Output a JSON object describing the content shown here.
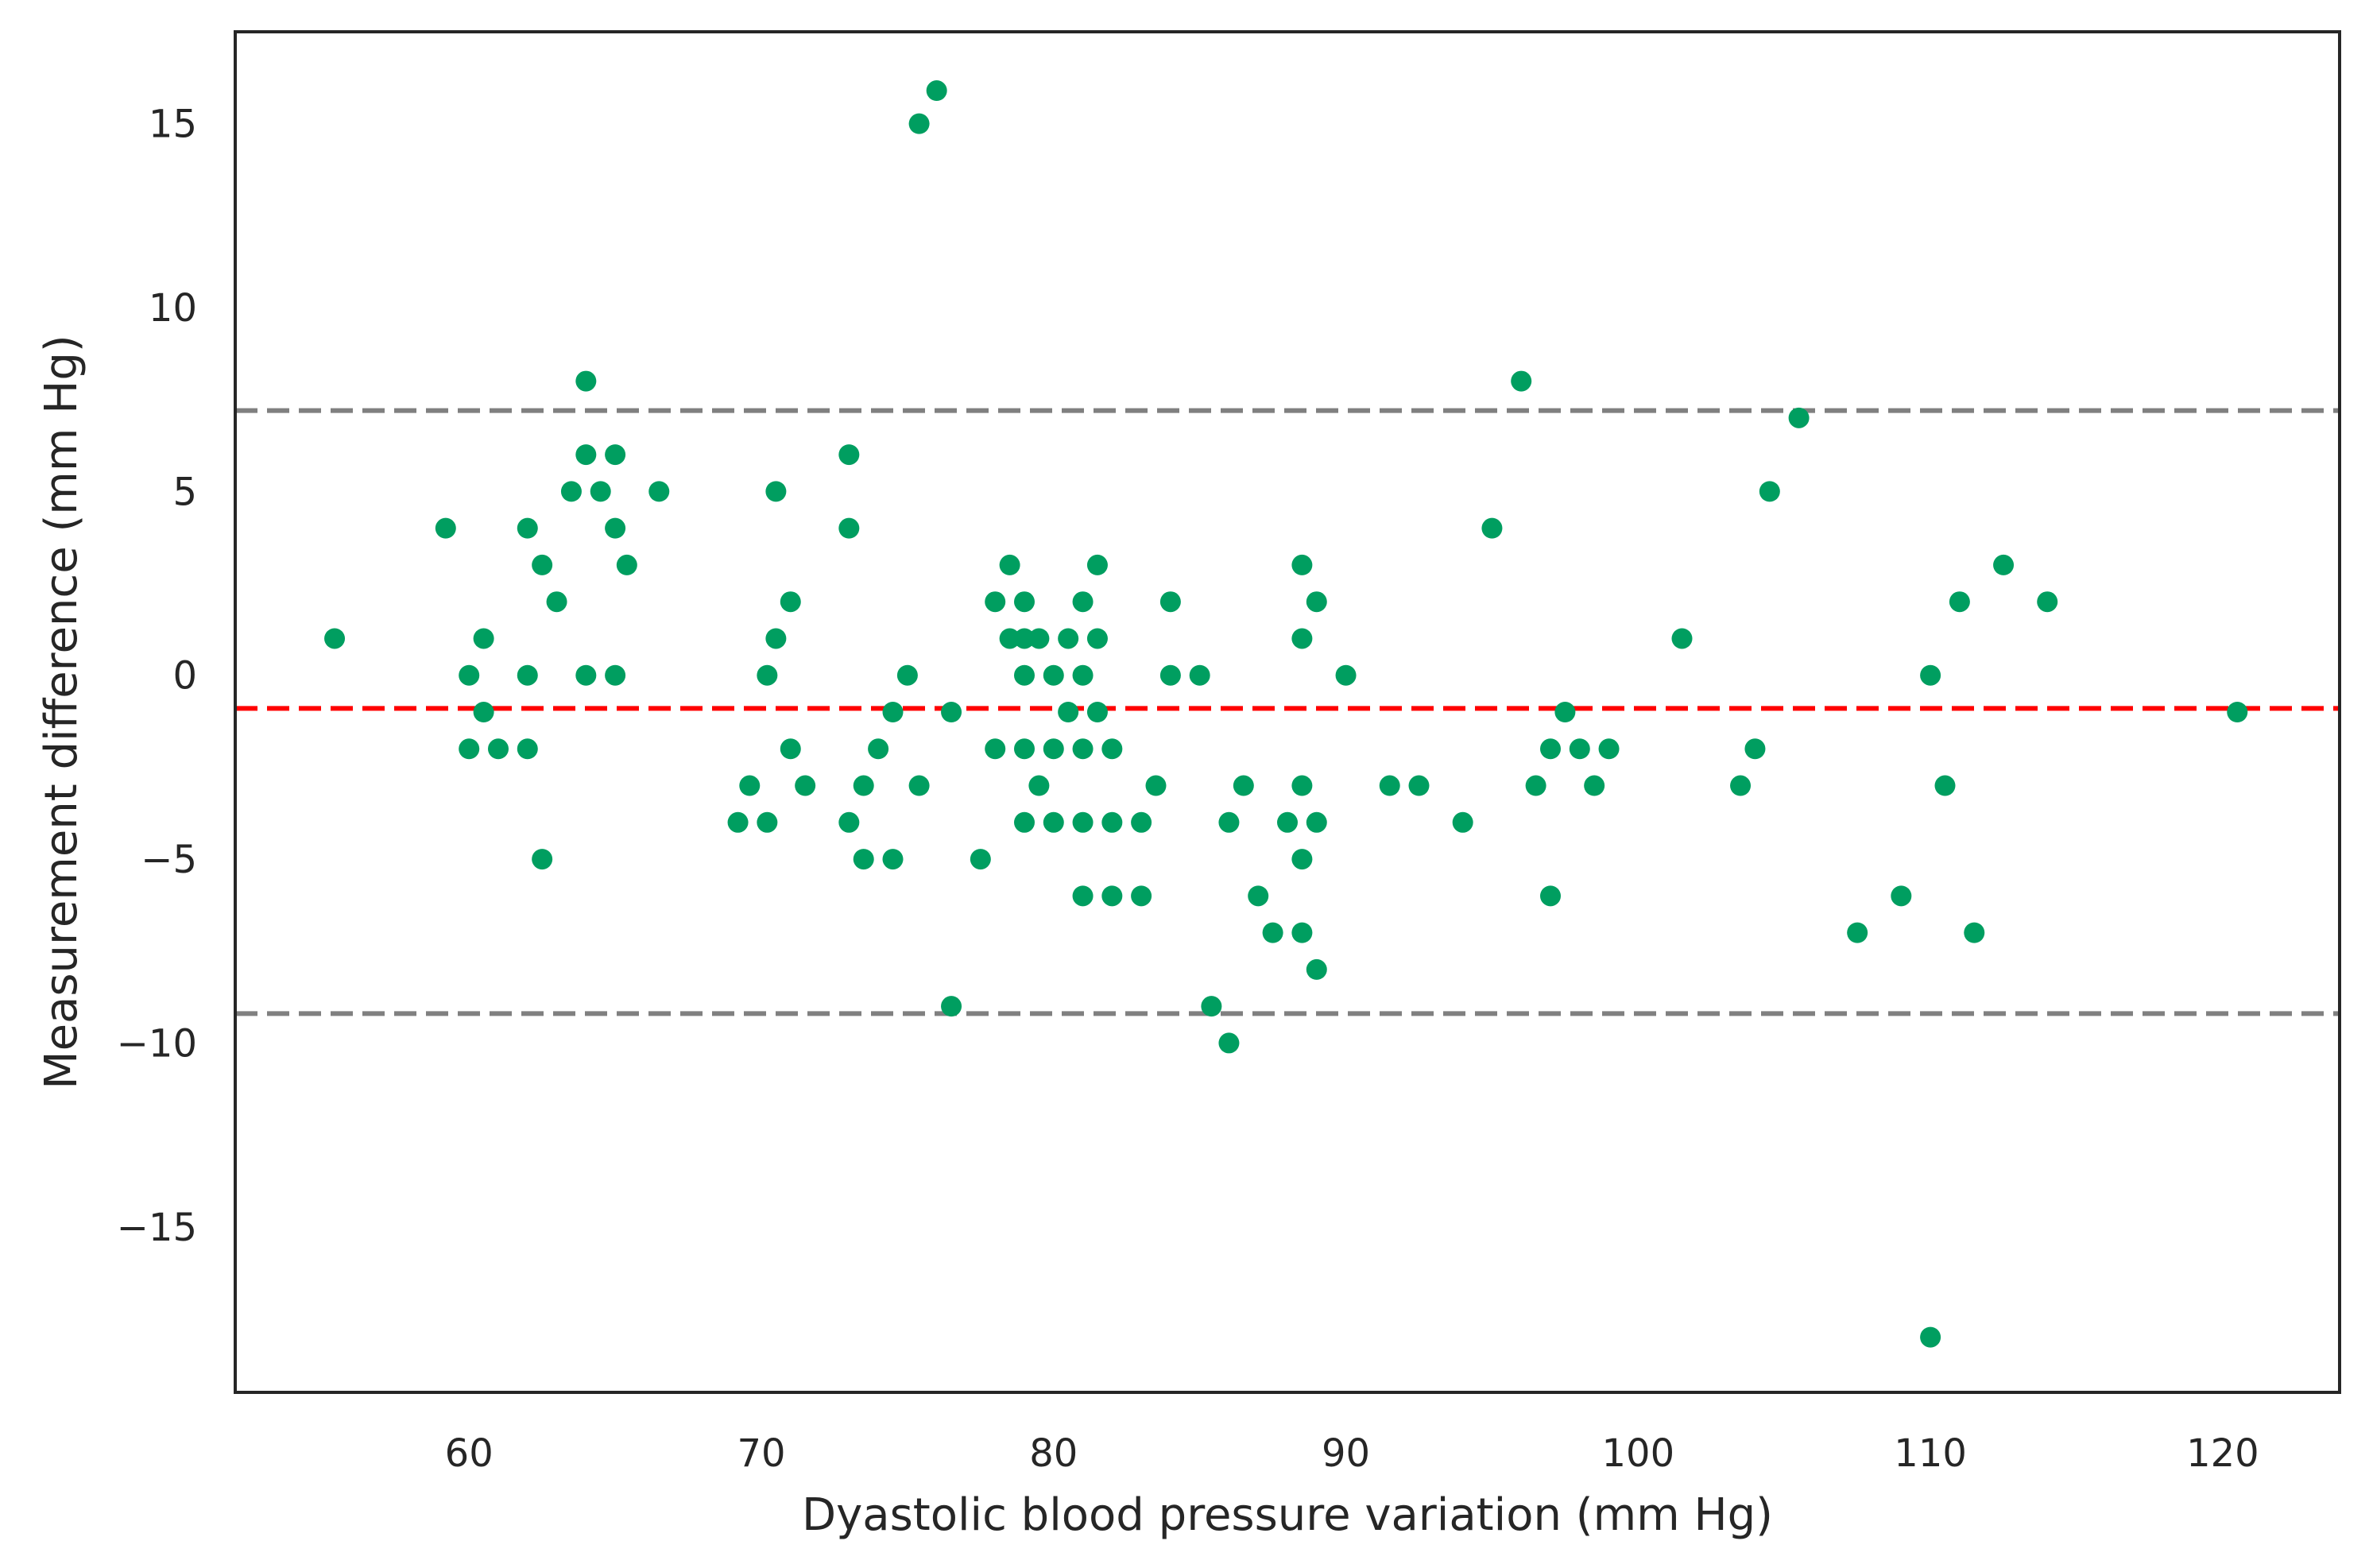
{
  "chart_data": {
    "type": "scatter",
    "title": "",
    "xlabel": "Dyastolic blood pressure variation (mm Hg)",
    "ylabel": "Measurement difference (mm Hg)",
    "xlim": [
      52,
      124
    ],
    "ylim": [
      -19.5,
      17.5
    ],
    "x_ticks": [
      60,
      70,
      80,
      90,
      100,
      110,
      120
    ],
    "x_tick_labels": [
      "60",
      "70",
      "80",
      "90",
      "100",
      "110",
      "120"
    ],
    "y_ticks": [
      15,
      10,
      5,
      0,
      -5,
      -10,
      -15
    ],
    "y_tick_labels": [
      "15",
      "10",
      "5",
      "0",
      "−5",
      "−10",
      "−15"
    ],
    "grid": false,
    "point_color": "#009e60",
    "reference_lines": [
      {
        "name": "upper-limit-of-agreement",
        "y": 7.2,
        "color": "#808080",
        "style": "dashed"
      },
      {
        "name": "mean-difference",
        "y": -0.9,
        "color": "#ff0000",
        "style": "dashed"
      },
      {
        "name": "lower-limit-of-agreement",
        "y": -9.2,
        "color": "#808080",
        "style": "dashed"
      }
    ],
    "series": [
      {
        "name": "measurements",
        "points": [
          [
            55.4,
            1
          ],
          [
            59.2,
            4
          ],
          [
            60,
            0
          ],
          [
            60,
            -2
          ],
          [
            60.5,
            1
          ],
          [
            60.5,
            -1
          ],
          [
            61,
            -2
          ],
          [
            62,
            4
          ],
          [
            62,
            0
          ],
          [
            62,
            -2
          ],
          [
            62.5,
            3
          ],
          [
            62.5,
            -5
          ],
          [
            63,
            2
          ],
          [
            63.5,
            5
          ],
          [
            64,
            8
          ],
          [
            64,
            6
          ],
          [
            64,
            0
          ],
          [
            64.5,
            5
          ],
          [
            65,
            6
          ],
          [
            65,
            4
          ],
          [
            65,
            0
          ],
          [
            65.4,
            3
          ],
          [
            66.5,
            5
          ],
          [
            69.2,
            -4
          ],
          [
            69.6,
            -3
          ],
          [
            70.2,
            0
          ],
          [
            70.2,
            -4
          ],
          [
            70.5,
            5
          ],
          [
            70.5,
            1
          ],
          [
            71,
            2
          ],
          [
            71,
            -2
          ],
          [
            71.5,
            -3
          ],
          [
            73,
            6
          ],
          [
            73,
            4
          ],
          [
            73,
            -4
          ],
          [
            73.5,
            -3
          ],
          [
            73.5,
            -5
          ],
          [
            74,
            -2
          ],
          [
            74.5,
            -1
          ],
          [
            74.5,
            -5
          ],
          [
            75,
            0
          ],
          [
            75.4,
            -3
          ],
          [
            75.4,
            15
          ],
          [
            76,
            15.9
          ],
          [
            76.5,
            -1
          ],
          [
            76.5,
            -9
          ],
          [
            77.5,
            -5
          ],
          [
            78,
            2
          ],
          [
            78,
            -2
          ],
          [
            78.5,
            3
          ],
          [
            78.5,
            1
          ],
          [
            79,
            2
          ],
          [
            79,
            1
          ],
          [
            79,
            0
          ],
          [
            79,
            -2
          ],
          [
            79,
            -4
          ],
          [
            79.5,
            1
          ],
          [
            79.5,
            -3
          ],
          [
            80,
            0
          ],
          [
            80,
            -2
          ],
          [
            80,
            -4
          ],
          [
            80.5,
            1
          ],
          [
            80.5,
            -1
          ],
          [
            81,
            2
          ],
          [
            81,
            0
          ],
          [
            81,
            -2
          ],
          [
            81,
            -4
          ],
          [
            81,
            -6
          ],
          [
            81.5,
            3
          ],
          [
            81.5,
            1
          ],
          [
            81.5,
            -1
          ],
          [
            82,
            -2
          ],
          [
            82,
            -4
          ],
          [
            82,
            -6
          ],
          [
            83,
            -4
          ],
          [
            83,
            -6
          ],
          [
            83.5,
            -3
          ],
          [
            84,
            2
          ],
          [
            84,
            0
          ],
          [
            85,
            0
          ],
          [
            85.4,
            -9
          ],
          [
            86,
            -10
          ],
          [
            86,
            -4
          ],
          [
            86.5,
            -3
          ],
          [
            87,
            -6
          ],
          [
            87.5,
            -7
          ],
          [
            88,
            -4
          ],
          [
            88.5,
            3
          ],
          [
            88.5,
            1
          ],
          [
            88.5,
            -3
          ],
          [
            88.5,
            -5
          ],
          [
            88.5,
            -7
          ],
          [
            89,
            2
          ],
          [
            89,
            -4
          ],
          [
            89,
            -8
          ],
          [
            90,
            0
          ],
          [
            91.5,
            -3
          ],
          [
            92.5,
            -3
          ],
          [
            94,
            -4
          ],
          [
            95,
            4
          ],
          [
            96,
            8
          ],
          [
            96.5,
            -3
          ],
          [
            97,
            -2
          ],
          [
            97,
            -6
          ],
          [
            97.5,
            -1
          ],
          [
            98,
            -2
          ],
          [
            98.5,
            -3
          ],
          [
            99,
            -2
          ],
          [
            101.5,
            1
          ],
          [
            103.5,
            -3
          ],
          [
            104,
            -2
          ],
          [
            104.5,
            5
          ],
          [
            105.5,
            7
          ],
          [
            107.5,
            -7
          ],
          [
            109,
            -6
          ],
          [
            110,
            0
          ],
          [
            110,
            -18
          ],
          [
            110.5,
            -3
          ],
          [
            111,
            2
          ],
          [
            111.5,
            -7
          ],
          [
            112.5,
            3
          ],
          [
            114,
            2
          ],
          [
            120.5,
            -1
          ]
        ]
      }
    ]
  }
}
